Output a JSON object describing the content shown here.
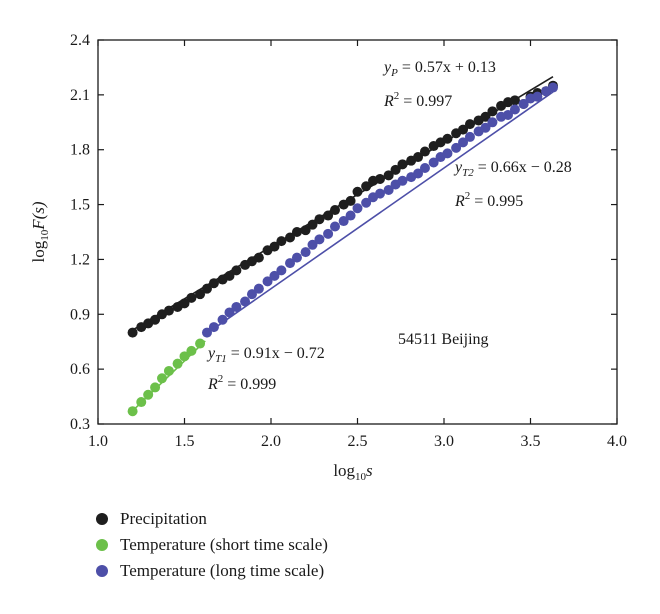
{
  "chart_data": {
    "type": "scatter",
    "xlabel": "log",
    "xlabel_sub": "10",
    "xlabel_var": "s",
    "ylabel": "log",
    "ylabel_sub": "10",
    "ylabel_var": "F(s)",
    "xlim": [
      1.0,
      4.0
    ],
    "ylim": [
      0.3,
      2.4
    ],
    "xticks": [
      "1.0",
      "1.5",
      "2.0",
      "2.5",
      "3.0",
      "3.5",
      "4.0"
    ],
    "yticks": [
      "0.3",
      "0.6",
      "0.9",
      "1.2",
      "1.5",
      "1.8",
      "2.1",
      "2.4"
    ],
    "station_label": "54511 Beijing",
    "series": [
      {
        "name": "Precipitation",
        "color": "#1e1e1e",
        "x": [
          1.2,
          1.25,
          1.29,
          1.33,
          1.37,
          1.41,
          1.46,
          1.5,
          1.54,
          1.59,
          1.63,
          1.67,
          1.72,
          1.76,
          1.8,
          1.85,
          1.89,
          1.93,
          1.98,
          2.02,
          2.06,
          2.11,
          2.15,
          2.2,
          2.24,
          2.28,
          2.33,
          2.37,
          2.42,
          2.46,
          2.5,
          2.55,
          2.59,
          2.63,
          2.68,
          2.72,
          2.76,
          2.81,
          2.85,
          2.89,
          2.94,
          2.98,
          3.02,
          3.07,
          3.11,
          3.15,
          3.2,
          3.24,
          3.28,
          3.33,
          3.37,
          3.41,
          3.46,
          3.5,
          3.54,
          3.59,
          3.63
        ],
        "y": [
          0.8,
          0.83,
          0.85,
          0.87,
          0.9,
          0.92,
          0.94,
          0.96,
          0.99,
          1.01,
          1.04,
          1.07,
          1.09,
          1.11,
          1.14,
          1.17,
          1.19,
          1.21,
          1.25,
          1.27,
          1.3,
          1.32,
          1.35,
          1.36,
          1.39,
          1.42,
          1.44,
          1.47,
          1.5,
          1.52,
          1.57,
          1.6,
          1.63,
          1.64,
          1.66,
          1.69,
          1.72,
          1.74,
          1.76,
          1.79,
          1.82,
          1.84,
          1.86,
          1.89,
          1.91,
          1.94,
          1.96,
          1.98,
          2.01,
          2.04,
          2.06,
          2.07,
          2.05,
          2.09,
          2.11,
          2.12,
          2.15
        ]
      },
      {
        "name": "Temperature (short time scale)",
        "color": "#6cc04a",
        "x": [
          1.2,
          1.25,
          1.29,
          1.33,
          1.37,
          1.41,
          1.46,
          1.5,
          1.54,
          1.59
        ],
        "y": [
          0.37,
          0.42,
          0.46,
          0.5,
          0.55,
          0.59,
          0.63,
          0.67,
          0.7,
          0.74
        ]
      },
      {
        "name": "Temperature (long time scale)",
        "color": "#4d4fa8",
        "x": [
          1.63,
          1.67,
          1.72,
          1.76,
          1.8,
          1.85,
          1.89,
          1.93,
          1.98,
          2.02,
          2.06,
          2.11,
          2.15,
          2.2,
          2.24,
          2.28,
          2.33,
          2.37,
          2.42,
          2.46,
          2.5,
          2.55,
          2.59,
          2.63,
          2.68,
          2.72,
          2.76,
          2.81,
          2.85,
          2.89,
          2.94,
          2.98,
          3.02,
          3.07,
          3.11,
          3.15,
          3.2,
          3.24,
          3.28,
          3.33,
          3.37,
          3.41,
          3.46,
          3.5,
          3.54,
          3.59,
          3.63
        ],
        "y": [
          0.8,
          0.83,
          0.87,
          0.91,
          0.94,
          0.97,
          1.01,
          1.04,
          1.08,
          1.11,
          1.14,
          1.18,
          1.21,
          1.24,
          1.28,
          1.31,
          1.34,
          1.38,
          1.41,
          1.44,
          1.48,
          1.51,
          1.54,
          1.56,
          1.58,
          1.61,
          1.63,
          1.65,
          1.67,
          1.7,
          1.73,
          1.76,
          1.78,
          1.81,
          1.84,
          1.87,
          1.9,
          1.92,
          1.95,
          1.98,
          1.99,
          2.02,
          2.05,
          2.08,
          2.09,
          2.12,
          2.14
        ]
      }
    ],
    "fits": [
      {
        "name": "P",
        "slope": 0.57,
        "intercept": 0.13,
        "x_range": [
          1.2,
          3.63
        ],
        "color": "#1e1e1e"
      },
      {
        "name": "T1",
        "slope": 0.91,
        "intercept": -0.72,
        "x_range": [
          1.2,
          1.62
        ],
        "color": "#6cc04a"
      },
      {
        "name": "T2",
        "slope": 0.66,
        "intercept": -0.28,
        "x_range": [
          1.63,
          3.63
        ],
        "color": "#4d4fa8"
      }
    ],
    "annotations": {
      "p_eq_sub": "P",
      "p_eq_rest": " = 0.57x + 0.13",
      "p_r2": " = 0.997",
      "t2_eq_sub": "T2",
      "t2_eq_rest": " = 0.66x − 0.28",
      "t2_r2": " = 0.995",
      "t1_eq_sub": "T1",
      "t1_eq_rest": " = 0.91x − 0.72",
      "t1_r2": " = 0.999",
      "y_char": "y",
      "r_char": "R",
      "r_sup": "2"
    }
  }
}
